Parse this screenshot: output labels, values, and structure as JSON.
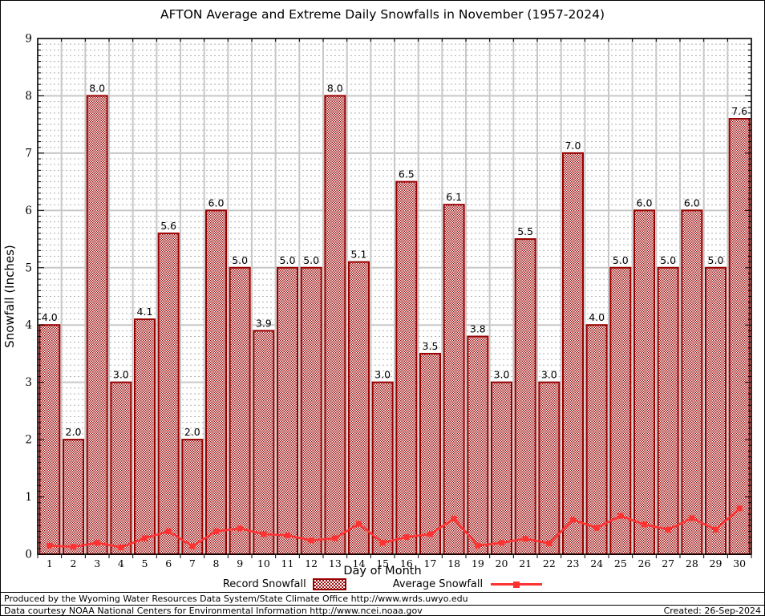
{
  "title": "AFTON Average and Extreme Daily Snowfalls in November (1957-2024)",
  "legend": {
    "record_label": "Record Snowfall",
    "average_label": "Average Snowfall"
  },
  "footer": {
    "line1": "Produced by the Wyoming Water Resources Data System/State Climate Office http://www.wrds.uwyo.edu",
    "line2": "Data courtesy NOAA National Centers for Environmental Information http://www.ncei.noaa.gov",
    "created": "Created: 26-Sep-2024"
  },
  "chart_data": {
    "type": "bar",
    "title": "AFTON Average and Extreme Daily Snowfalls in November (1957-2024)",
    "xlabel": "Day of Month",
    "ylabel": "Snowfall (Inches)",
    "ylim": [
      0,
      9
    ],
    "yticks": [
      0,
      1,
      2,
      3,
      4,
      5,
      6,
      7,
      8,
      9
    ],
    "categories": [
      "1",
      "2",
      "3",
      "4",
      "5",
      "6",
      "7",
      "8",
      "9",
      "10",
      "11",
      "12",
      "13",
      "14",
      "15",
      "16",
      "17",
      "18",
      "19",
      "20",
      "21",
      "22",
      "23",
      "24",
      "25",
      "26",
      "27",
      "28",
      "29",
      "30"
    ],
    "series": [
      {
        "name": "Record Snowfall",
        "type": "bar",
        "bar_labels": true,
        "values": [
          4.0,
          2.0,
          8.0,
          3.0,
          4.1,
          5.6,
          2.0,
          6.0,
          5.0,
          3.9,
          5.0,
          5.0,
          8.0,
          5.1,
          3.0,
          6.5,
          3.5,
          6.1,
          3.8,
          3.0,
          5.5,
          3.0,
          7.0,
          4.0,
          5.0,
          6.0,
          5.0,
          6.0,
          5.0,
          7.6
        ]
      },
      {
        "name": "Average Snowfall",
        "type": "line",
        "values": [
          0.15,
          0.13,
          0.2,
          0.12,
          0.28,
          0.4,
          0.14,
          0.4,
          0.45,
          0.35,
          0.33,
          0.24,
          0.28,
          0.53,
          0.2,
          0.3,
          0.35,
          0.62,
          0.15,
          0.2,
          0.27,
          0.19,
          0.6,
          0.46,
          0.67,
          0.52,
          0.43,
          0.63,
          0.43,
          0.8
        ]
      }
    ],
    "grid": {
      "major": "solid gray at 1.0",
      "minor": "dashed gray at 0.1",
      "vertical": "solid gray at day boundaries"
    },
    "legend_position": "bottom",
    "colors": {
      "bar": "#9b0b0b",
      "bar_border": "#990000",
      "line": "#ff3232",
      "grid_major": "#c8c8c8",
      "grid_minor": "#b0b0b0",
      "axis": "#000000"
    }
  }
}
